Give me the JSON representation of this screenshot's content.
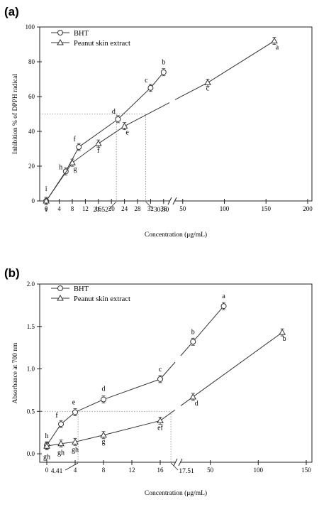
{
  "chart_data": [
    {
      "type": "line",
      "panel_label": "(a)",
      "xlabel": "Concentration (μg/mL)",
      "ylabel": "Inhibition % of DPPH radical",
      "ylim": [
        0,
        100
      ],
      "yticks": [
        "0",
        "20",
        "40",
        "60",
        "80",
        "100"
      ],
      "axis_break": true,
      "x_axis_segments": [
        {
          "range": [
            -2,
            38
          ],
          "ticks": [
            "0",
            "4",
            "8",
            "12",
            "16",
            "20",
            "24",
            "28",
            "32",
            "36"
          ]
        },
        {
          "range": [
            40,
            200
          ],
          "ticks": [
            "50",
            "100",
            "150",
            "200"
          ]
        }
      ],
      "legend": {
        "placement": "top-left",
        "entries": [
          "BHT",
          "Peanut skin extract"
        ]
      },
      "series": [
        {
          "name": "BHT",
          "marker": "circle",
          "x": [
            0,
            6,
            10,
            22,
            32,
            36
          ],
          "y": [
            0,
            17,
            31,
            47,
            65,
            74
          ],
          "labels": [
            "i",
            "h",
            "f",
            "d",
            "c",
            "b"
          ]
        },
        {
          "name": "Peanut skin extract",
          "marker": "triangle",
          "x": [
            0,
            8,
            16,
            24,
            80,
            160
          ],
          "y": [
            0,
            22,
            33,
            43,
            68,
            92
          ],
          "labels": [
            "i",
            "g",
            "f",
            "e",
            "c",
            "a"
          ]
        }
      ],
      "annotations": [
        {
          "text": "21.52",
          "x": 21.52
        },
        {
          "text": "30.50",
          "x": 30.5
        }
      ],
      "reference_y": 50
    },
    {
      "type": "line",
      "panel_label": "(b)",
      "xlabel": "Concentration (μg/mL)",
      "ylabel": "Absorbance at 700 nm",
      "ylim": [
        -0.1,
        2.0
      ],
      "yticks": [
        "0.0",
        "0.5",
        "1.0",
        "1.5",
        "2.0"
      ],
      "axis_break": true,
      "x_axis_segments": [
        {
          "range": [
            -1,
            18
          ],
          "ticks": [
            "0",
            "4",
            "8",
            "12",
            "16"
          ]
        },
        {
          "range": [
            20,
            150
          ],
          "ticks": [
            "50",
            "100",
            "150"
          ]
        }
      ],
      "legend": {
        "placement": "top-left",
        "entries": [
          "BHT",
          "Peanut skin extract"
        ]
      },
      "series": [
        {
          "name": "BHT",
          "marker": "circle",
          "x": [
            0,
            2,
            4,
            8,
            16,
            32,
            64
          ],
          "y": [
            0.1,
            0.35,
            0.49,
            0.64,
            0.88,
            1.32,
            1.74
          ],
          "labels": [
            "h",
            "f",
            "e",
            "d",
            "c",
            "b",
            "a"
          ]
        },
        {
          "name": "Peanut skin extract",
          "marker": "triangle",
          "x": [
            0,
            2,
            4,
            8,
            16,
            32,
            125
          ],
          "y": [
            0.09,
            0.12,
            0.14,
            0.22,
            0.39,
            0.67,
            1.43
          ],
          "labels": [
            "gh",
            "gh",
            "gh",
            "g",
            "ef",
            "d",
            "b"
          ]
        }
      ],
      "annotations": [
        {
          "text": "4.41",
          "x": 4.41
        },
        {
          "text": "17.51",
          "x": 17.51
        }
      ],
      "reference_y": 0.5
    }
  ]
}
